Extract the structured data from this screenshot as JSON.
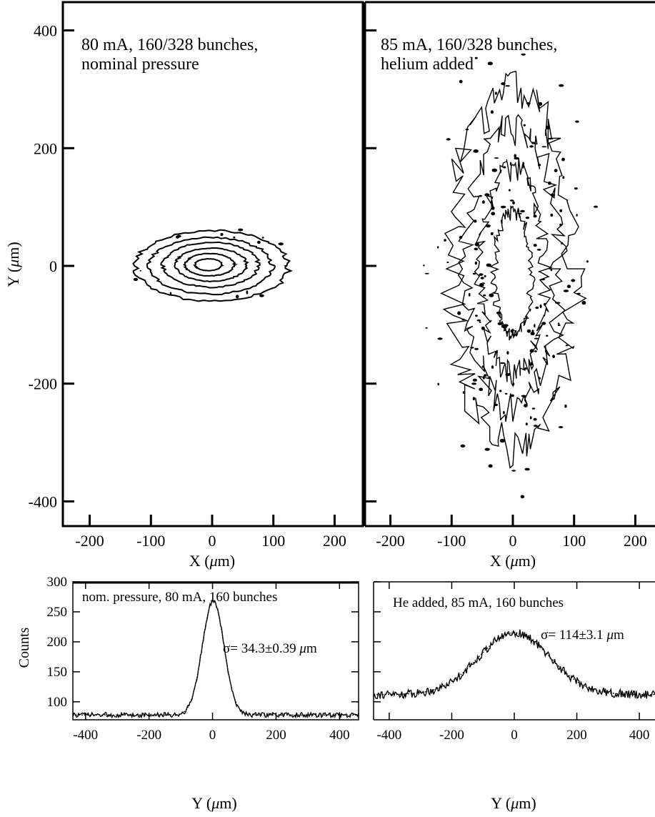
{
  "chart_data": [
    {
      "type": "heatmap",
      "panel": "top-left",
      "annotation_lines": [
        "80 mA, 160/328 bunches,",
        "nominal pressure"
      ],
      "xlabel_main": "X (",
      "xlabel_mu": "μ",
      "xlabel_end": "m)",
      "ylabel_main": "Y (",
      "ylabel_mu": "μ",
      "ylabel_end": "m)",
      "xlim": [
        -245,
        245
      ],
      "ylim": [
        -445,
        445
      ],
      "xticks": [
        -200,
        -100,
        0,
        100,
        200
      ],
      "yticks": [
        400,
        200,
        0,
        -200,
        -400
      ],
      "xtick_labels": [
        "-200",
        "-100",
        "0",
        "100",
        "200"
      ],
      "ytick_labels": [
        "400",
        "200",
        "0",
        "-200",
        "-400"
      ],
      "contours": [
        {
          "level": 1,
          "rx": 125,
          "ry": 60,
          "cx": 0,
          "cy": 0
        },
        {
          "level": 2,
          "rx": 100,
          "ry": 48,
          "cx": -2,
          "cy": 0
        },
        {
          "level": 3,
          "rx": 78,
          "ry": 38,
          "cx": -2,
          "cy": 2
        },
        {
          "level": 4,
          "rx": 58,
          "ry": 28,
          "cx": -2,
          "cy": 2
        },
        {
          "level": 5,
          "rx": 40,
          "ry": 19,
          "cx": -4,
          "cy": 2
        },
        {
          "level": 6,
          "rx": 22,
          "ry": 10,
          "cx": -6,
          "cy": 2
        }
      ]
    },
    {
      "type": "heatmap",
      "panel": "top-right",
      "annotation_lines": [
        "85 mA, 160/328 bunches,",
        "helium added"
      ],
      "xlabel_main": "X (",
      "xlabel_mu": "μ",
      "xlabel_end": "m)",
      "xlim": [
        -245,
        245
      ],
      "ylim": [
        -445,
        445
      ],
      "xticks": [
        -200,
        -100,
        0,
        100,
        200
      ],
      "yticks": [
        400,
        200,
        0,
        -200,
        -400
      ],
      "xtick_labels": [
        "-200",
        "-100",
        "0",
        "100",
        "200"
      ],
      "contours": [
        {
          "level": 1,
          "rx": 100,
          "ry": 300,
          "cx": 0,
          "cy": -5
        },
        {
          "level": 2,
          "rx": 75,
          "ry": 240,
          "cx": 0,
          "cy": -5
        },
        {
          "level": 3,
          "rx": 52,
          "ry": 175,
          "cx": 0,
          "cy": -10
        },
        {
          "level": 4,
          "rx": 30,
          "ry": 105,
          "cx": 0,
          "cy": -15
        }
      ]
    },
    {
      "type": "line",
      "panel": "bottom-left",
      "annotation": "nom. pressure, 80 mA, 160 bunches",
      "sigma_text": "σ= 34.3±0.39 ",
      "sigma_mu": "μ",
      "sigma_unit": "m",
      "ylabel": "Counts",
      "xlabel_main": "Y (",
      "xlabel_mu": "μ",
      "xlabel_end": "m)",
      "xlim": [
        -440,
        460
      ],
      "ylim": [
        70,
        300
      ],
      "xticks": [
        -400,
        -200,
        0,
        200,
        400
      ],
      "xtick_labels": [
        "-400",
        "-200",
        "0",
        "200",
        "400"
      ],
      "yticks": [
        100,
        150,
        200,
        250,
        300
      ],
      "ytick_labels": [
        "100",
        "150",
        "200",
        "250",
        "300"
      ],
      "series": [
        {
          "peak": 268,
          "center": 2,
          "sigma": 34.3,
          "baseline": 78
        }
      ],
      "sample_points": {
        "x": [
          -400,
          -300,
          -200,
          -100,
          -50,
          0,
          50,
          100,
          200,
          300,
          400
        ],
        "y": [
          78,
          77,
          78,
          81,
          120,
          268,
          125,
          82,
          78,
          78,
          77
        ]
      }
    },
    {
      "type": "line",
      "panel": "bottom-right",
      "annotation": "He added, 85 mA, 160 bunches",
      "sigma_text": "σ=  114±3.1 ",
      "sigma_mu": "μ",
      "sigma_unit": "m",
      "xlabel_main": "Y (",
      "xlabel_mu": "μ",
      "xlabel_end": "m)",
      "xlim": [
        -450,
        450
      ],
      "ylim": [
        70,
        300
      ],
      "xticks": [
        -400,
        -200,
        0,
        200,
        400
      ],
      "xtick_labels": [
        "-400",
        "-200",
        "0",
        "200",
        "400"
      ],
      "series": [
        {
          "peak": 215,
          "center": 0,
          "sigma": 114,
          "baseline": 112
        }
      ],
      "sample_points": {
        "x": [
          -450,
          -400,
          -300,
          -200,
          -100,
          0,
          100,
          200,
          300,
          400,
          450
        ],
        "y": [
          120,
          123,
          130,
          148,
          182,
          215,
          183,
          148,
          130,
          122,
          118
        ]
      }
    }
  ]
}
